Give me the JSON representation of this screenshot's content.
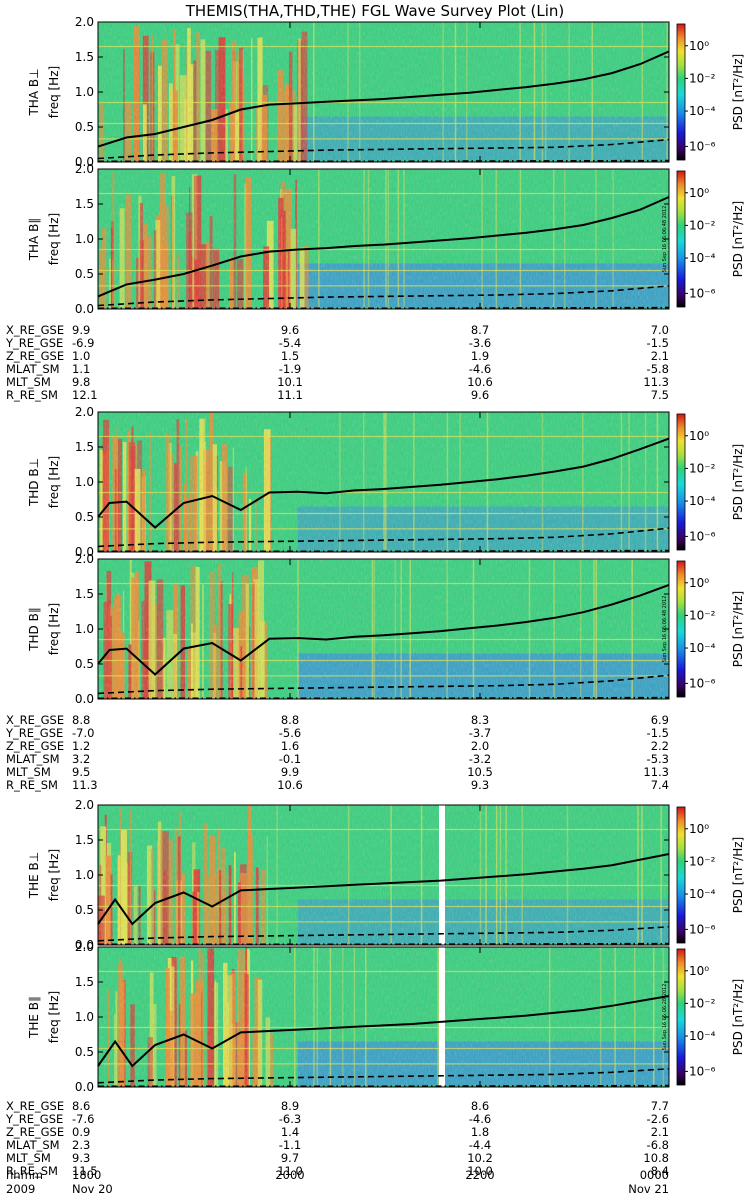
{
  "page_title": "THEMIS(THA,THD,THE) FGL Wave Survey Plot (Lin)",
  "colorbar": {
    "label": "PSD [nT²/Hz]",
    "ticks": [
      "10⁰",
      "10⁻²",
      "10⁻⁴",
      "10⁻⁶"
    ]
  },
  "stamps": {
    "tha": "Sun Sep 16 05:06:48 2012",
    "thd": "Sun Sep 16 05:06:48 2012",
    "the": "Sun Sep 16 05:06:28 2012"
  },
  "chart_data": [
    {
      "type": "heatmap",
      "id": "tha-bperp",
      "probe": "THA",
      "component": "B⊥",
      "ylabel_probe": "THA B⊥",
      "ylabel_unit": "freq [Hz]",
      "ylim": [
        0.0,
        2.0
      ],
      "yticks": [
        "2.0",
        "1.5",
        "1.0",
        "0.5",
        "0.0"
      ],
      "series": [
        {
          "line": "solid",
          "x": [
            0,
            0.05,
            0.1,
            0.15,
            0.2,
            0.25,
            0.3,
            0.35,
            0.4,
            0.45,
            0.5,
            0.55,
            0.6,
            0.65,
            0.7,
            0.75,
            0.8,
            0.85,
            0.9,
            0.95,
            1.0
          ],
          "y": [
            0.22,
            0.35,
            0.4,
            0.5,
            0.6,
            0.75,
            0.82,
            0.84,
            0.86,
            0.88,
            0.9,
            0.93,
            0.96,
            0.99,
            1.03,
            1.07,
            1.12,
            1.18,
            1.27,
            1.4,
            1.58
          ]
        },
        {
          "line": "dashed",
          "x": [
            0,
            0.1,
            0.2,
            0.3,
            0.4,
            0.5,
            0.6,
            0.7,
            0.8,
            0.9,
            1.0
          ],
          "y": [
            0.05,
            0.1,
            0.13,
            0.15,
            0.17,
            0.18,
            0.19,
            0.2,
            0.21,
            0.25,
            0.32
          ]
        },
        {
          "line": "dashdot",
          "x": [
            0,
            0.5,
            1.0
          ],
          "y": [
            0.01,
            0.01,
            0.02
          ]
        }
      ]
    },
    {
      "type": "heatmap",
      "id": "tha-bpar",
      "probe": "THA",
      "component": "B∥",
      "ylabel_probe": "THA B∥",
      "ylabel_unit": "freq [Hz]",
      "ylim": [
        0.0,
        2.0
      ],
      "yticks": [
        "2.0",
        "1.5",
        "1.0",
        "0.5",
        "0.0"
      ],
      "series": [
        {
          "line": "solid",
          "x": [
            0,
            0.05,
            0.1,
            0.15,
            0.2,
            0.25,
            0.3,
            0.35,
            0.4,
            0.45,
            0.5,
            0.55,
            0.6,
            0.65,
            0.7,
            0.75,
            0.8,
            0.85,
            0.9,
            0.95,
            1.0
          ],
          "y": [
            0.18,
            0.35,
            0.42,
            0.5,
            0.62,
            0.75,
            0.82,
            0.85,
            0.87,
            0.9,
            0.92,
            0.95,
            0.98,
            1.01,
            1.05,
            1.09,
            1.14,
            1.2,
            1.3,
            1.42,
            1.6
          ]
        },
        {
          "line": "dashed",
          "x": [
            0,
            0.1,
            0.2,
            0.3,
            0.4,
            0.5,
            0.6,
            0.7,
            0.8,
            0.9,
            1.0
          ],
          "y": [
            0.05,
            0.1,
            0.13,
            0.15,
            0.17,
            0.18,
            0.19,
            0.2,
            0.22,
            0.26,
            0.33
          ]
        },
        {
          "line": "dashdot",
          "x": [
            0,
            0.5,
            1.0
          ],
          "y": [
            0.01,
            0.01,
            0.02
          ]
        }
      ]
    },
    {
      "type": "heatmap",
      "id": "thd-bperp",
      "probe": "THD",
      "component": "B⊥",
      "ylabel_probe": "THD B⊥",
      "ylabel_unit": "freq [Hz]",
      "ylim": [
        0.0,
        2.0
      ],
      "yticks": [
        "2.0",
        "1.5",
        "1.0",
        "0.5",
        "0.0"
      ],
      "series": [
        {
          "line": "solid",
          "x": [
            0,
            0.02,
            0.05,
            0.1,
            0.15,
            0.2,
            0.25,
            0.3,
            0.35,
            0.4,
            0.45,
            0.5,
            0.55,
            0.6,
            0.65,
            0.7,
            0.75,
            0.8,
            0.85,
            0.9,
            0.95,
            1.0
          ],
          "y": [
            0.5,
            0.7,
            0.72,
            0.35,
            0.7,
            0.8,
            0.6,
            0.85,
            0.86,
            0.84,
            0.88,
            0.9,
            0.93,
            0.96,
            1.0,
            1.04,
            1.09,
            1.15,
            1.22,
            1.33,
            1.47,
            1.62
          ]
        },
        {
          "line": "dashed",
          "x": [
            0,
            0.1,
            0.2,
            0.3,
            0.4,
            0.5,
            0.6,
            0.7,
            0.8,
            0.9,
            1.0
          ],
          "y": [
            0.08,
            0.12,
            0.14,
            0.15,
            0.16,
            0.17,
            0.18,
            0.19,
            0.21,
            0.26,
            0.34
          ]
        },
        {
          "line": "dashdot",
          "x": [
            0,
            0.5,
            1.0
          ],
          "y": [
            0.01,
            0.01,
            0.02
          ]
        }
      ]
    },
    {
      "type": "heatmap",
      "id": "thd-bpar",
      "probe": "THD",
      "component": "B∥",
      "ylabel_probe": "THD B∥",
      "ylabel_unit": "freq [Hz]",
      "ylim": [
        0.0,
        2.0
      ],
      "yticks": [
        "2.0",
        "1.5",
        "1.0",
        "0.5",
        "0.0"
      ],
      "series": [
        {
          "line": "solid",
          "x": [
            0,
            0.02,
            0.05,
            0.1,
            0.15,
            0.2,
            0.25,
            0.3,
            0.35,
            0.4,
            0.45,
            0.5,
            0.55,
            0.6,
            0.65,
            0.7,
            0.75,
            0.8,
            0.85,
            0.9,
            0.95,
            1.0
          ],
          "y": [
            0.5,
            0.7,
            0.72,
            0.35,
            0.72,
            0.8,
            0.55,
            0.86,
            0.87,
            0.85,
            0.89,
            0.91,
            0.94,
            0.97,
            1.01,
            1.05,
            1.1,
            1.16,
            1.24,
            1.35,
            1.48,
            1.63
          ]
        },
        {
          "line": "dashed",
          "x": [
            0,
            0.1,
            0.2,
            0.3,
            0.4,
            0.5,
            0.6,
            0.7,
            0.8,
            0.9,
            1.0
          ],
          "y": [
            0.08,
            0.12,
            0.14,
            0.15,
            0.16,
            0.17,
            0.18,
            0.19,
            0.21,
            0.26,
            0.34
          ]
        },
        {
          "line": "dashdot",
          "x": [
            0,
            0.5,
            1.0
          ],
          "y": [
            0.01,
            0.01,
            0.02
          ]
        }
      ]
    },
    {
      "type": "heatmap",
      "id": "the-bperp",
      "probe": "THE",
      "component": "B⊥",
      "ylabel_probe": "THE B⊥",
      "ylabel_unit": "freq [Hz]",
      "ylim": [
        0.0,
        2.0
      ],
      "yticks": [
        "2.0",
        "1.5",
        "1.0",
        "0.5",
        "0.0"
      ],
      "series": [
        {
          "line": "solid",
          "x": [
            0,
            0.03,
            0.06,
            0.1,
            0.15,
            0.2,
            0.25,
            0.3,
            0.35,
            0.4,
            0.45,
            0.5,
            0.55,
            0.6,
            0.65,
            0.7,
            0.75,
            0.8,
            0.85,
            0.9,
            0.95,
            1.0
          ],
          "y": [
            0.3,
            0.65,
            0.3,
            0.6,
            0.75,
            0.55,
            0.78,
            0.8,
            0.82,
            0.84,
            0.86,
            0.88,
            0.9,
            0.92,
            0.95,
            0.98,
            1.01,
            1.05,
            1.09,
            1.14,
            1.22,
            1.3
          ]
        },
        {
          "line": "dashed",
          "x": [
            0,
            0.1,
            0.2,
            0.3,
            0.4,
            0.5,
            0.6,
            0.7,
            0.8,
            0.9,
            1.0
          ],
          "y": [
            0.06,
            0.1,
            0.12,
            0.13,
            0.14,
            0.15,
            0.16,
            0.17,
            0.18,
            0.21,
            0.26
          ]
        },
        {
          "line": "dashdot",
          "x": [
            0,
            0.5,
            1.0
          ],
          "y": [
            0.01,
            0.01,
            0.02
          ]
        }
      ]
    },
    {
      "type": "heatmap",
      "id": "the-bpar",
      "probe": "THE",
      "component": "B∥",
      "ylabel_probe": "THE B∥",
      "ylabel_unit": "freq [Hz]",
      "ylim": [
        0.0,
        2.0
      ],
      "yticks": [
        "2.0",
        "1.5",
        "1.0",
        "0.5",
        "0.0"
      ],
      "series": [
        {
          "line": "solid",
          "x": [
            0,
            0.03,
            0.06,
            0.1,
            0.15,
            0.2,
            0.25,
            0.3,
            0.35,
            0.4,
            0.45,
            0.5,
            0.55,
            0.6,
            0.65,
            0.7,
            0.75,
            0.8,
            0.85,
            0.9,
            0.95,
            1.0
          ],
          "y": [
            0.3,
            0.65,
            0.3,
            0.6,
            0.75,
            0.55,
            0.78,
            0.8,
            0.82,
            0.84,
            0.86,
            0.88,
            0.9,
            0.93,
            0.96,
            0.99,
            1.02,
            1.06,
            1.1,
            1.16,
            1.23,
            1.3
          ]
        },
        {
          "line": "dashed",
          "x": [
            0,
            0.1,
            0.2,
            0.3,
            0.4,
            0.5,
            0.6,
            0.7,
            0.8,
            0.9,
            1.0
          ],
          "y": [
            0.06,
            0.1,
            0.12,
            0.13,
            0.14,
            0.15,
            0.16,
            0.17,
            0.18,
            0.21,
            0.26
          ]
        },
        {
          "line": "dashdot",
          "x": [
            0,
            0.5,
            1.0
          ],
          "y": [
            0.01,
            0.01,
            0.02
          ]
        }
      ]
    }
  ],
  "ephemeris": [
    {
      "probe": "THA",
      "rows": [
        {
          "label": "X_RE_GSE",
          "values": [
            "9.9",
            "9.6",
            "8.7",
            "7.0"
          ]
        },
        {
          "label": "Y_RE_GSE",
          "values": [
            "-6.9",
            "-5.4",
            "-3.6",
            "-1.5"
          ]
        },
        {
          "label": "Z_RE_GSE",
          "values": [
            "1.0",
            "1.5",
            "1.9",
            "2.1"
          ]
        },
        {
          "label": "MLAT_SM",
          "values": [
            "1.1",
            "-1.9",
            "-4.6",
            "-5.8"
          ]
        },
        {
          "label": "MLT_SM",
          "values": [
            "9.8",
            "10.1",
            "10.6",
            "11.3"
          ]
        },
        {
          "label": "R_RE_SM",
          "values": [
            "12.1",
            "11.1",
            "9.6",
            "7.5"
          ]
        }
      ]
    },
    {
      "probe": "THD",
      "rows": [
        {
          "label": "X_RE_GSE",
          "values": [
            "8.8",
            "8.8",
            "8.3",
            "6.9"
          ]
        },
        {
          "label": "Y_RE_GSE",
          "values": [
            "-7.0",
            "-5.6",
            "-3.7",
            "-1.5"
          ]
        },
        {
          "label": "Z_RE_GSE",
          "values": [
            "1.2",
            "1.6",
            "2.0",
            "2.2"
          ]
        },
        {
          "label": "MLAT_SM",
          "values": [
            "3.2",
            "-0.1",
            "-3.2",
            "-5.3"
          ]
        },
        {
          "label": "MLT_SM",
          "values": [
            "9.5",
            "9.9",
            "10.5",
            "11.3"
          ]
        },
        {
          "label": "R_RE_SM",
          "values": [
            "11.3",
            "10.6",
            "9.3",
            "7.4"
          ]
        }
      ]
    },
    {
      "probe": "THE",
      "rows": [
        {
          "label": "X_RE_GSE",
          "values": [
            "8.6",
            "8.9",
            "8.6",
            "7.7"
          ]
        },
        {
          "label": "Y_RE_GSE",
          "values": [
            "-7.6",
            "-6.3",
            "-4.6",
            "-2.6"
          ]
        },
        {
          "label": "Z_RE_GSE",
          "values": [
            "0.9",
            "1.4",
            "1.8",
            "2.1"
          ]
        },
        {
          "label": "MLAT_SM",
          "values": [
            "2.3",
            "-1.1",
            "-4.4",
            "-6.8"
          ]
        },
        {
          "label": "MLT_SM",
          "values": [
            "9.3",
            "9.7",
            "10.2",
            "10.8"
          ]
        },
        {
          "label": "R_RE_SM",
          "values": [
            "11.5",
            "11.0",
            "10.0",
            "8.4"
          ]
        }
      ]
    }
  ],
  "time_axis": {
    "label": "hhmm",
    "ticks": [
      "1800",
      "2000",
      "2200",
      "0000"
    ],
    "year": "2009",
    "date_start": "Nov 20",
    "date_end": "Nov 21"
  },
  "colors": {
    "spectrogram_bg": "#2fd27a",
    "quiet_blue": "#2f8fe0",
    "hot_orange": "#f08a2a",
    "hot_red": "#e0302a",
    "yellow": "#e8e84a",
    "curve": "#000000",
    "data_gap": "#ffffff"
  }
}
